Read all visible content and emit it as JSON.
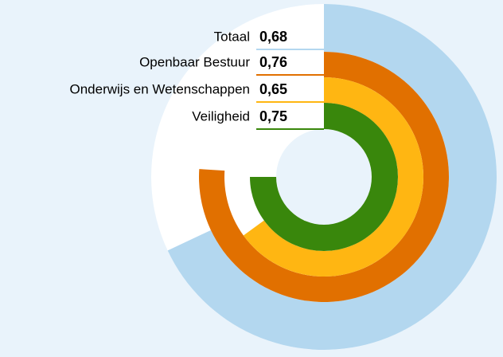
{
  "chart_data": {
    "type": "radial_bar",
    "series": [
      {
        "name": "Totaal",
        "color": "#b3d7ef",
        "values": [
          0.68
        ],
        "value_labels": [
          "0,68"
        ]
      },
      {
        "name": "Openbaar Bestuur",
        "color": "#e17000",
        "values": [
          0.76
        ],
        "value_labels": [
          "0,76"
        ]
      },
      {
        "name": "Onderwijs en Wetenschappen",
        "color": "#ffb612",
        "values": [
          0.65
        ],
        "value_labels": [
          "0,65"
        ]
      },
      {
        "name": "Veiligheid",
        "color": "#39870c",
        "values": [
          0.75
        ],
        "value_labels": [
          "0,75"
        ]
      }
    ],
    "ylim": [
      0,
      1
    ]
  }
}
